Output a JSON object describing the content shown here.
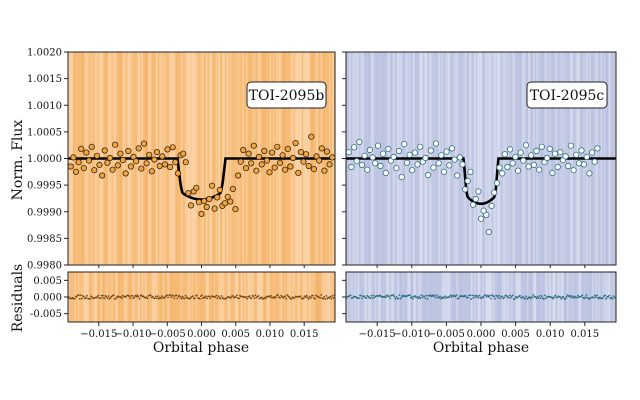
{
  "chart_data": [
    {
      "type": "scatter",
      "panel": "main-left",
      "planet_label": "TOI-2095b",
      "ylabel": "Norm. Flux",
      "xlabel": "",
      "xlim": [
        -0.0195,
        0.0195
      ],
      "ylim": [
        0.998,
        1.002
      ],
      "yticks": [
        "0.9980",
        "0.9985",
        "0.9990",
        "0.9995",
        "1.0000",
        "1.0005",
        "1.0010",
        "1.0015",
        "1.0020"
      ],
      "xticks": [],
      "background_color": "#f9c58a",
      "point_fill": "#f0a640",
      "model": {
        "depth": 0.00077,
        "t_half": 0.0035,
        "ingress": 0.0008
      },
      "points": {
        "x_start": -0.0191,
        "x_step": 0.000382,
        "y": [
          0.99985,
          1.00002,
          0.99975,
          0.99993,
          1.00018,
          0.99982,
          1.00011,
          0.99996,
          1.00022,
          0.99978,
          1.00005,
          0.99988,
          0.99968,
          1.00015,
          0.99992,
          1.00001,
          0.99979,
          1.00026,
          0.99987,
          1.00009,
          0.99997,
          0.99972,
          1.00014,
          0.99985,
          1.00003,
          0.99995,
          1.00019,
          0.99981,
          1.00028,
          0.99991,
          1.00007,
          0.99976,
          0.99998,
          1.00012,
          0.99986,
          1.00004,
          0.99989,
          1.00017,
          0.99984,
          1.00021,
          0.99993,
          0.99972,
          1.00006,
          1.00009,
          0.99993,
          0.99935,
          0.99912,
          0.99938,
          0.99945,
          0.99918,
          0.99896,
          0.9992,
          0.99909,
          0.99924,
          0.99949,
          0.99906,
          0.99927,
          0.99941,
          0.99911,
          0.99916,
          0.99928,
          0.99919,
          0.99943,
          0.99905,
          0.99968,
          0.99994,
          1.00016,
          0.99982,
          1.00009,
          0.99991,
          1.00024,
          0.99977,
          1.00003,
          0.99989,
          1.00014,
          0.99996,
          0.99974,
          1.00011,
          0.99983,
          1.00022,
          0.99992,
          1.00006,
          0.99979,
          1.00018,
          0.99985,
          1.00001,
          1.00029,
          0.99973,
          1.00012,
          0.99994,
          1.00008,
          0.99986,
          1.00041,
          0.9998,
          1.00004,
          0.99996,
          1.00019,
          0.99977,
          1.00013,
          0.99989,
          1.00002
        ]
      }
    },
    {
      "type": "scatter",
      "panel": "main-right",
      "planet_label": "TOI-2095c",
      "xlabel": "",
      "xlim": [
        -0.0195,
        0.0195
      ],
      "ylim": [
        0.998,
        1.002
      ],
      "background_color": "#c7cde6",
      "point_fill": "#ffffff",
      "point_stroke": "#2c6f86",
      "model": {
        "depth": 0.00085,
        "t_half": 0.0025,
        "ingress": 0.0006
      },
      "points": {
        "x_start": -0.0191,
        "x_step": 0.000382,
        "y": [
          1.00012,
          0.99984,
          1.00021,
          0.99995,
          1.00031,
          0.99988,
          1.00005,
          0.99979,
          1.00016,
          1.00002,
          0.99991,
          1.00024,
          0.99986,
          1.00009,
          0.99973,
          1.00018,
          0.99996,
          1.00003,
          0.99982,
          1.00014,
          0.99965,
          1.00027,
          0.99992,
          1.00007,
          0.99978,
          1.00011,
          0.99989,
          1.00022,
          0.99994,
          1.00001,
          0.99969,
          1.00015,
          0.99983,
          1.00028,
          0.99991,
          1.00006,
          0.99975,
          1.00013,
          0.99987,
          1.00019,
          0.99998,
          0.99968,
          1.00002,
          0.99989,
          0.99942,
          0.99958,
          0.99975,
          0.99913,
          0.99924,
          0.99938,
          0.99887,
          0.99902,
          0.99894,
          0.99862,
          0.99911,
          0.99936,
          0.99954,
          0.99983,
          0.99972,
          1.00008,
          0.99984,
          1.00017,
          0.99991,
          1.00003,
          0.99977,
          1.00011,
          0.99996,
          1.00025,
          0.99985,
          1.00006,
          0.99988,
          1.00014,
          0.99979,
          1.00022,
          0.99993,
          1.00001,
          1.00018,
          0.99973,
          1.00009,
          0.99984,
          1.00012,
          0.99997,
          1.00004,
          0.99986,
          1.00024,
          0.99978,
          1.00007,
          0.99991,
          1.00015,
          0.99989,
          1.00003,
          0.99972,
          1.00011,
          0.99994,
          1.00019
        ]
      }
    },
    {
      "type": "scatter",
      "panel": "resid-left",
      "ylabel": "Residuals",
      "xlabel": "Orbital phase",
      "xlim": [
        -0.0195,
        0.0195
      ],
      "ylim": [
        -0.0075,
        0.0075
      ],
      "yticks": [
        "-0.005",
        "0.000",
        "0.005"
      ],
      "xticks": [
        "-0.015",
        "-0.010",
        "-0.005",
        "0.000",
        "0.005",
        "0.010",
        "0.015"
      ],
      "background_color": "#f9c58a",
      "point_fill": "#7a4a1e"
    },
    {
      "type": "scatter",
      "panel": "resid-right",
      "xlabel": "Orbital phase",
      "xlim": [
        -0.0195,
        0.0195
      ],
      "ylim": [
        -0.0075,
        0.0075
      ],
      "xticks": [
        "-0.015",
        "-0.010",
        "-0.005",
        "0.000",
        "0.005",
        "0.010",
        "0.015"
      ],
      "background_color": "#c7cde6",
      "point_fill": "#2c6f86"
    }
  ]
}
